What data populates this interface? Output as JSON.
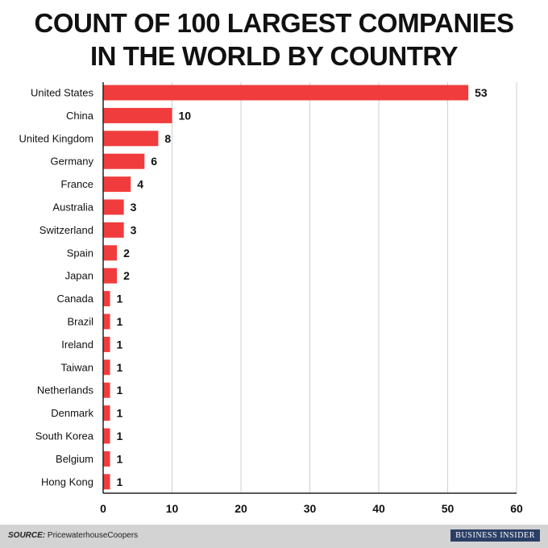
{
  "title_lines": [
    "COUNT OF 100 LARGEST COMPANIES",
    "IN THE WORLD BY COUNTRY"
  ],
  "source_label": "SOURCE:",
  "source_text": "PricewaterhouseCoopers",
  "brand": "BUSINESS INSIDER",
  "chart_data": {
    "type": "bar",
    "orientation": "horizontal",
    "title": "COUNT OF 100 LARGEST COMPANIES IN THE WORLD BY COUNTRY",
    "categories": [
      "United States",
      "China",
      "United Kingdom",
      "Germany",
      "France",
      "Australia",
      "Switzerland",
      "Spain",
      "Japan",
      "Canada",
      "Brazil",
      "Ireland",
      "Taiwan",
      "Netherlands",
      "Denmark",
      "South Korea",
      "Belgium",
      "Hong Kong"
    ],
    "values": [
      53,
      10,
      8,
      6,
      4,
      3,
      3,
      2,
      2,
      1,
      1,
      1,
      1,
      1,
      1,
      1,
      1,
      1
    ],
    "xlim": [
      0,
      60
    ],
    "xticks": [
      0,
      10,
      20,
      30,
      40,
      50,
      60
    ],
    "xlabel": "",
    "ylabel": "",
    "grid": true,
    "bar_color": "#f03c3c"
  }
}
